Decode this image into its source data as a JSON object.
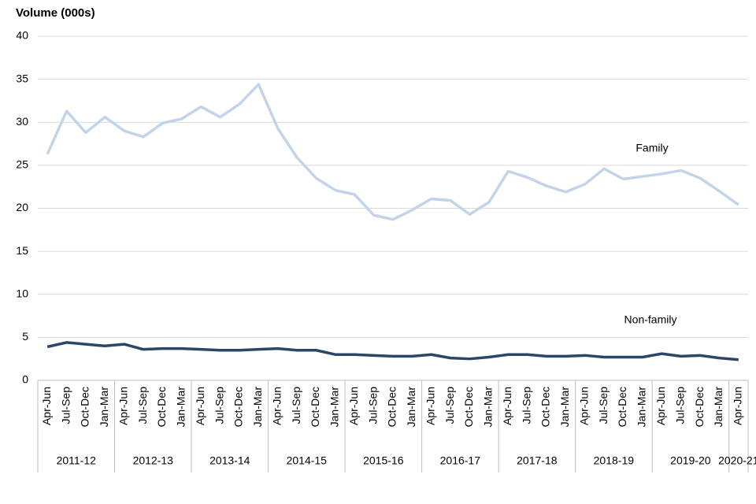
{
  "chart_data": {
    "type": "line",
    "y_label": "Volume (000s)",
    "categories": [
      "Apr-Jun",
      "Jul-Sep",
      "Oct-Dec",
      "Jan-Mar",
      "Apr-Jun",
      "Jul-Sep",
      "Oct-Dec",
      "Jan-Mar",
      "Apr-Jun",
      "Jul-Sep",
      "Oct-Dec",
      "Jan-Mar",
      "Apr-Jun",
      "Jul-Sep",
      "Oct-Dec",
      "Jan-Mar",
      "Apr-Jun",
      "Jul-Sep",
      "Oct-Dec",
      "Jan-Mar",
      "Apr-Jun",
      "Jul-Sep",
      "Oct-Dec",
      "Jan-Mar",
      "Apr-Jun",
      "Jul-Sep",
      "Oct-Dec",
      "Jan-Mar",
      "Apr-Jun",
      "Jul-Sep",
      "Oct-Dec",
      "Jan-Mar",
      "Apr-Jun",
      "Jul-Sep",
      "Oct-Dec",
      "Jan-Mar",
      "Apr-Jun"
    ],
    "groups": [
      "2011-12",
      "2012-13",
      "2013-14",
      "2014-15",
      "2015-16",
      "2016-17",
      "2017-18",
      "2018-19",
      "2019-20",
      "2020-21"
    ],
    "series": [
      {
        "name": "Family",
        "color": "#c3d4e9",
        "values": [
          26.3,
          31.3,
          28.8,
          30.6,
          29.0,
          28.3,
          29.9,
          30.4,
          31.8,
          30.6,
          32.1,
          34.4,
          29.3,
          25.9,
          23.5,
          22.1,
          21.6,
          19.2,
          18.7,
          19.8,
          21.1,
          20.9,
          19.3,
          20.7,
          24.3,
          23.6,
          22.6,
          21.9,
          22.8,
          24.6,
          23.4,
          23.7,
          24.0,
          24.4,
          23.5,
          22.0,
          20.4
        ]
      },
      {
        "name": "Non-family",
        "color": "#2c4669",
        "values": [
          3.9,
          4.4,
          4.2,
          4.0,
          4.2,
          3.6,
          3.7,
          3.7,
          3.6,
          3.5,
          3.5,
          3.6,
          3.7,
          3.5,
          3.5,
          3.0,
          3.0,
          2.9,
          2.8,
          2.8,
          3.0,
          2.6,
          2.5,
          2.7,
          3.0,
          3.0,
          2.8,
          2.8,
          2.9,
          2.7,
          2.7,
          2.7,
          3.1,
          2.8,
          2.9,
          2.6,
          2.4
        ]
      }
    ],
    "ylim": [
      0,
      40
    ],
    "yticks": [
      0,
      5,
      10,
      15,
      20,
      25,
      30,
      35,
      40
    ],
    "grid": true
  }
}
